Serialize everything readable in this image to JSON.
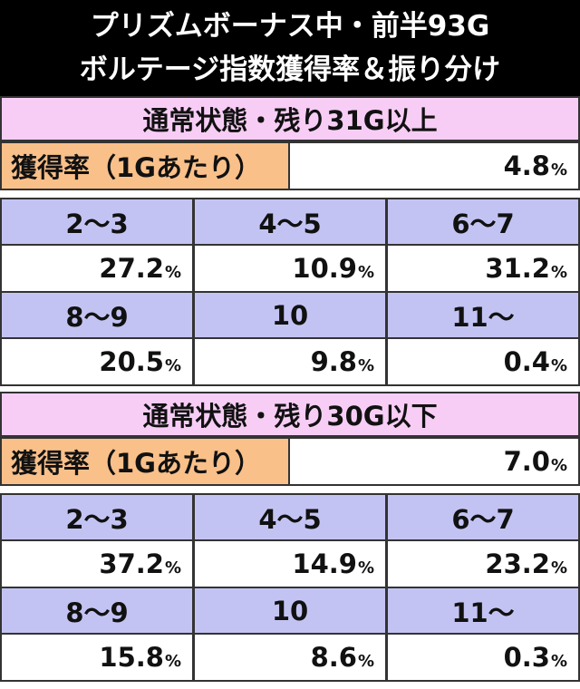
{
  "header": {
    "title_lines": [
      "プリズムボーナス中・前半93G",
      "ボルテージ指数獲得率＆振り分け"
    ]
  },
  "sections": [
    {
      "title": "通常状態・残り31G以上",
      "rate_label": "獲得率（1Gあたり）",
      "rate": {
        "value": "4.8",
        "unit": "%"
      },
      "rows": [
        {
          "labels": [
            "2〜3",
            "4〜5",
            "6〜7"
          ],
          "values": [
            {
              "value": "27.2",
              "unit": "%"
            },
            {
              "value": "10.9",
              "unit": "%"
            },
            {
              "value": "31.2",
              "unit": "%"
            }
          ]
        },
        {
          "labels": [
            "8〜9",
            "10",
            "11〜"
          ],
          "values": [
            {
              "value": "20.5",
              "unit": "%"
            },
            {
              "value": "9.8",
              "unit": "%"
            },
            {
              "value": "0.4",
              "unit": "%"
            }
          ]
        }
      ]
    },
    {
      "title": "通常状態・残り30G以下",
      "rate_label": "獲得率（1Gあたり）",
      "rate": {
        "value": "7.0",
        "unit": "%"
      },
      "rows": [
        {
          "labels": [
            "2〜3",
            "4〜5",
            "6〜7"
          ],
          "values": [
            {
              "value": "37.2",
              "unit": "%"
            },
            {
              "value": "14.9",
              "unit": "%"
            },
            {
              "value": "23.2",
              "unit": "%"
            }
          ]
        },
        {
          "labels": [
            "8〜9",
            "10",
            "11〜"
          ],
          "values": [
            {
              "value": "15.8",
              "unit": "%"
            },
            {
              "value": "8.6",
              "unit": "%"
            },
            {
              "value": "0.3",
              "unit": "%"
            }
          ]
        }
      ]
    }
  ]
}
